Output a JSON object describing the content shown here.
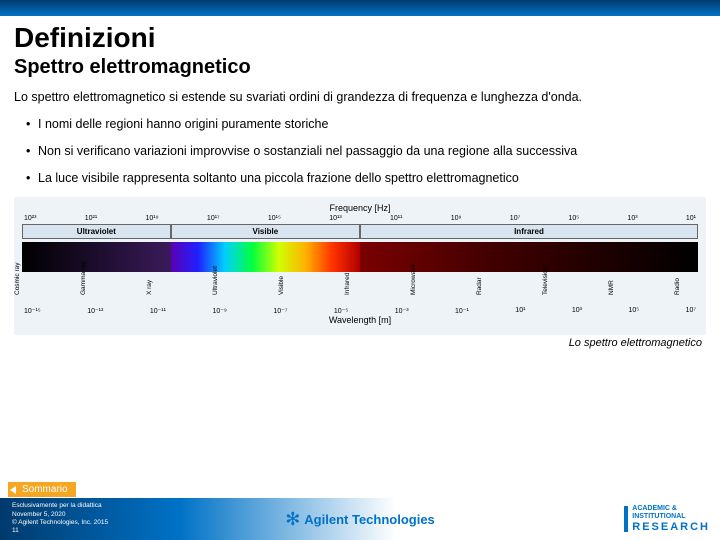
{
  "header": {
    "title": "Definizioni",
    "subtitle": "Spettro elettromagnetico"
  },
  "intro": "Lo spettro elettromagnetico si estende su svariati ordini di grandezza di frequenza e lunghezza d'onda.",
  "bullets": [
    "I nomi delle regioni hanno origini puramente storiche",
    "Non si verificano variazioni improvvise o sostanziali nel passaggio da una regione alla successiva",
    "La luce visibile rappresenta soltanto una piccola frazione dello spettro elettromagnetico"
  ],
  "spectrum": {
    "freq_label": "Frequency [Hz]",
    "wave_label": "Wavelength [m]",
    "freq_ticks": [
      "10²³",
      "10²¹",
      "10¹⁹",
      "10¹⁷",
      "10¹⁵",
      "10¹³",
      "10¹¹",
      "10⁹",
      "10⁷",
      "10⁵",
      "10³",
      "10¹"
    ],
    "wave_ticks": [
      "10⁻¹⁵",
      "10⁻¹³",
      "10⁻¹¹",
      "10⁻⁹",
      "10⁻⁷",
      "10⁻⁵",
      "10⁻³",
      "10⁻¹",
      "10¹",
      "10³",
      "10⁵",
      "10⁷"
    ],
    "regions": [
      {
        "label": "Ultraviolet",
        "flex": 22
      },
      {
        "label": "Visible",
        "flex": 28
      },
      {
        "label": "Infrared",
        "flex": 50
      }
    ],
    "sources": [
      "Cosmic ray",
      "Gamma ray",
      "X ray",
      "Ultraviolet",
      "Visible",
      "Infrared",
      "Microwave",
      "Radar",
      "Television",
      "NMR",
      "Radio"
    ],
    "colors": {
      "box_bg": "#eef3f7",
      "region_bg": "#d8e4ef",
      "region_border": "#666666"
    }
  },
  "caption": "Lo spettro elettromagnetico",
  "footer": {
    "sommario": "Sommario",
    "line1": "Esclusivamente per la didattica",
    "line2": "November 5, 2020",
    "line3": "© Agilent Technologies, Inc. 2015",
    "line4": "11",
    "agilent": "Agilent Technologies",
    "research_l1": "ACADEMIC &",
    "research_l2": "INSTITUTIONAL",
    "research_l3": "RESEARCH"
  }
}
